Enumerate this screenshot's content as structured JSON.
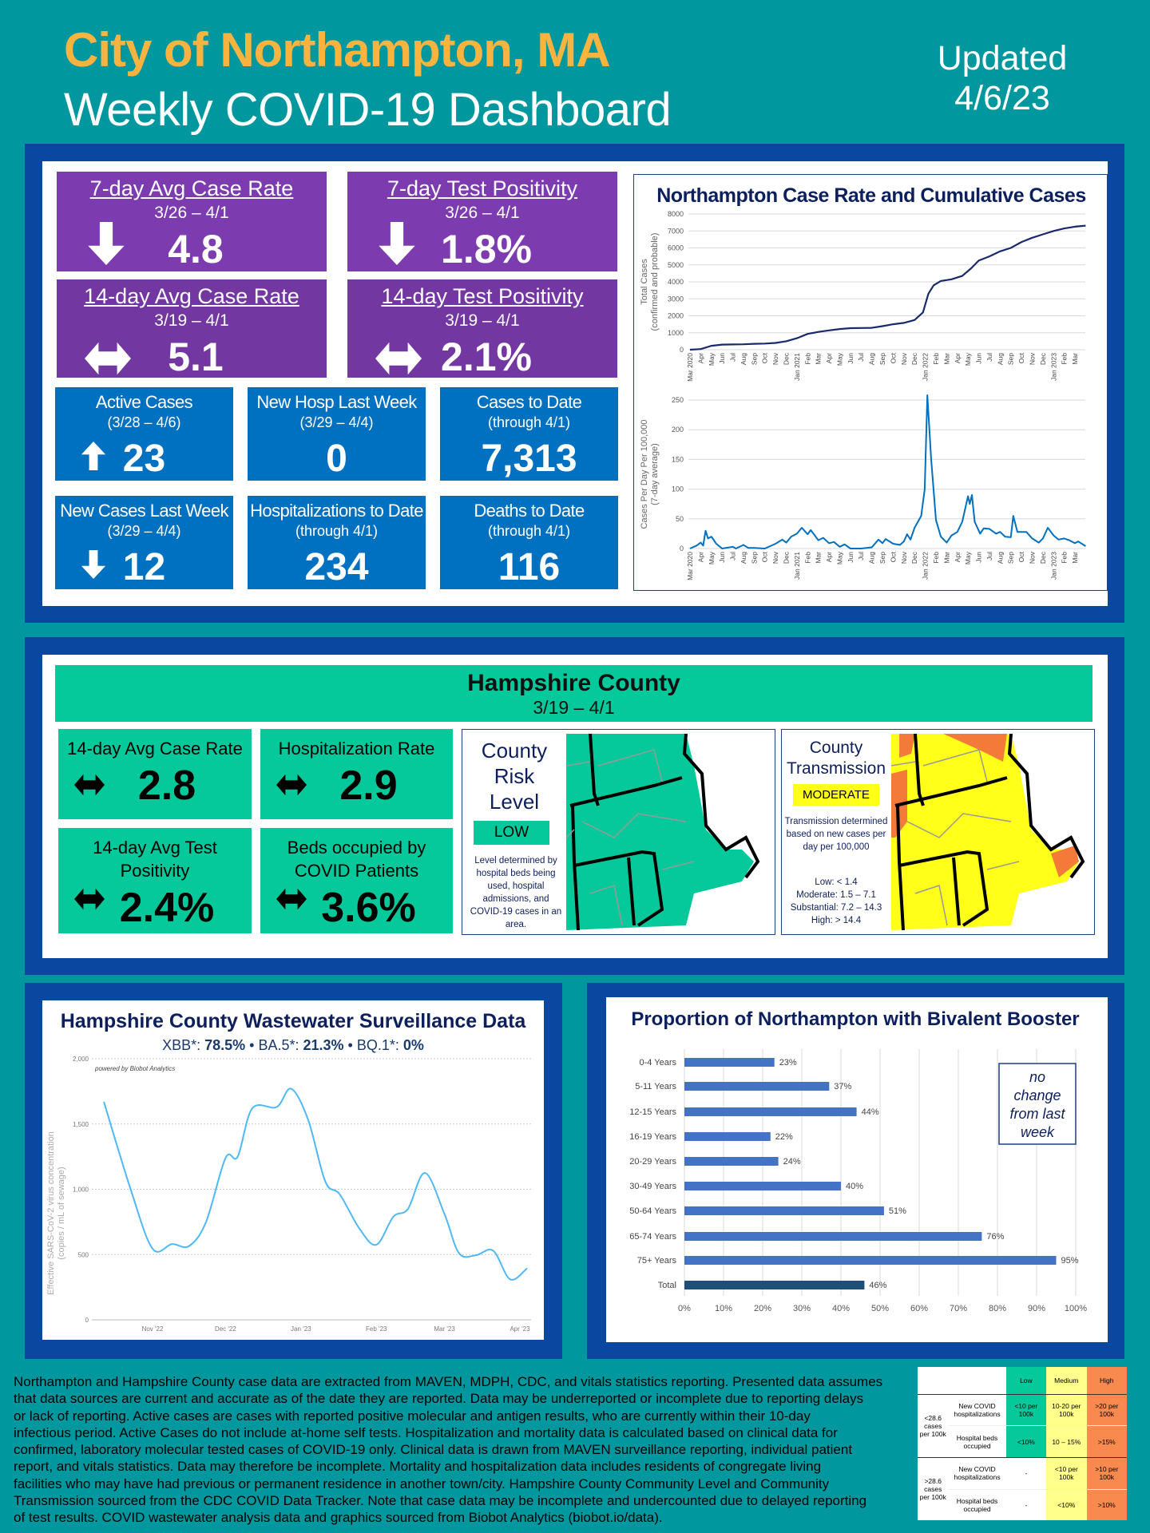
{
  "header": {
    "city": "City of Northampton, MA",
    "subtitle": "Weekly COVID-19 Dashboard",
    "updated_label": "Updated",
    "updated_date": "4/6/23"
  },
  "colors": {
    "background": "#00989e",
    "title_accent": "#fbb340",
    "panel_border": "#0a47a0",
    "purple": "#7d3bb0",
    "blue": "#0070c0",
    "green": "#05c99a",
    "yellow": "#ffff33",
    "orange": "#f47a3a",
    "navy": "#0d1f5c"
  },
  "city_metrics": [
    {
      "title": "7-day Avg Case Rate",
      "dates": "3/26 – 4/1",
      "value": "4.8",
      "trend": "down-arrow-icon"
    },
    {
      "title": "7-day Test Positivity",
      "dates": "3/26 – 4/1",
      "value": "1.8%",
      "trend": "down-arrow-icon"
    },
    {
      "title": "14-day Avg Case Rate",
      "dates": "3/19 – 4/1",
      "value": "5.1",
      "trend": "left-right-arrow-icon"
    },
    {
      "title": "14-day Test Positivity",
      "dates": "3/19 – 4/1",
      "value": "2.1%",
      "trend": "left-right-arrow-icon"
    }
  ],
  "city_counts": [
    {
      "title": "Active Cases",
      "dates": "(3/28 – 4/6)",
      "value": "23",
      "trend": "up-arrow-icon"
    },
    {
      "title": "New Hosp Last Week",
      "dates": "(3/29 – 4/4)",
      "value": "0",
      "trend": ""
    },
    {
      "title": "Cases to Date",
      "dates": "(through 4/1)",
      "value": "7,313",
      "trend": ""
    },
    {
      "title": "New Cases Last Week",
      "dates": "(3/29 – 4/4)",
      "value": "12",
      "trend": "down-arrow-icon"
    },
    {
      "title": "Hospitalizations to Date",
      "dates": "(through 4/1)",
      "value": "234",
      "trend": ""
    },
    {
      "title": "Deaths to Date",
      "dates": "(through 4/1)",
      "value": "116",
      "trend": ""
    }
  ],
  "county": {
    "title": "Hampshire County",
    "dates": "3/19 – 4/1",
    "metrics": [
      {
        "title": "14-day Avg Case Rate",
        "value": "2.8",
        "trend": "left-right-arrow-icon"
      },
      {
        "title": "Hospitalization Rate",
        "value": "2.9",
        "trend": "left-right-arrow-icon"
      },
      {
        "title": "14-day Avg Test Positivity",
        "value": "2.4%",
        "trend": "left-right-arrow-icon"
      },
      {
        "title": "Beds occupied by COVID Patients",
        "value": "3.6%",
        "trend": "left-right-arrow-icon"
      }
    ],
    "risk": {
      "title_lines": [
        "County",
        "Risk",
        "Level"
      ],
      "level": "LOW",
      "note": "Level determined by hospital beds being used, hospital admissions, and COVID-19 cases in an area."
    },
    "transmission": {
      "title_lines": [
        "County",
        "Transmission"
      ],
      "level": "MODERATE",
      "note": "Transmission determined based on new cases per day per 100,000",
      "thresholds": [
        "Low: < 1.4",
        "Moderate: 1.5 – 7.1",
        "Substantial: 7.2 – 14.3",
        "High: > 14.4"
      ]
    }
  },
  "chart_data": [
    {
      "type": "line",
      "title": "Northampton Case Rate and Cumulative Cases",
      "ylabel": [
        "Total Cases",
        "(confirmed and probable)"
      ],
      "ylim": [
        0,
        8000
      ],
      "yticks": [
        0,
        1000,
        2000,
        3000,
        4000,
        5000,
        6000,
        7000,
        8000
      ],
      "grid": true,
      "x_tick_labels": [
        "Mar 2020",
        "Apr",
        "May",
        "Jun",
        "Jul",
        "Aug",
        "Sep",
        "Oct",
        "Nov",
        "Dec",
        "Jan 2021",
        "Feb",
        "Mar",
        "Apr",
        "May",
        "Jun",
        "Jul",
        "Aug",
        "Sep",
        "Oct",
        "Nov",
        "Dec",
        "Jan 2022",
        "Feb",
        "Mar",
        "Apr",
        "May",
        "Jun",
        "Jul",
        "Aug",
        "Sep",
        "Oct",
        "Nov",
        "Dec",
        "Jan 2023",
        "Feb",
        "Mar"
      ],
      "points": [
        [
          "2020-03-01",
          0
        ],
        [
          "2020-04-01",
          40
        ],
        [
          "2020-05-01",
          230
        ],
        [
          "2020-06-01",
          300
        ],
        [
          "2020-07-01",
          310
        ],
        [
          "2020-08-01",
          320
        ],
        [
          "2020-09-01",
          350
        ],
        [
          "2020-10-01",
          360
        ],
        [
          "2020-11-01",
          400
        ],
        [
          "2020-12-01",
          500
        ],
        [
          "2021-01-01",
          680
        ],
        [
          "2021-02-01",
          930
        ],
        [
          "2021-03-01",
          1050
        ],
        [
          "2021-04-01",
          1140
        ],
        [
          "2021-05-01",
          1220
        ],
        [
          "2021-06-01",
          1270
        ],
        [
          "2021-07-01",
          1280
        ],
        [
          "2021-08-01",
          1290
        ],
        [
          "2021-09-01",
          1390
        ],
        [
          "2021-10-01",
          1500
        ],
        [
          "2021-11-01",
          1580
        ],
        [
          "2021-12-01",
          1750
        ],
        [
          "2021-12-25",
          2200
        ],
        [
          "2022-01-10",
          3300
        ],
        [
          "2022-01-25",
          3800
        ],
        [
          "2022-02-15",
          4050
        ],
        [
          "2022-03-15",
          4150
        ],
        [
          "2022-04-15",
          4350
        ],
        [
          "2022-05-10",
          4800
        ],
        [
          "2022-06-01",
          5250
        ],
        [
          "2022-07-01",
          5500
        ],
        [
          "2022-08-01",
          5800
        ],
        [
          "2022-09-01",
          6000
        ],
        [
          "2022-10-01",
          6350
        ],
        [
          "2022-11-01",
          6600
        ],
        [
          "2022-12-01",
          6800
        ],
        [
          "2023-01-01",
          7000
        ],
        [
          "2023-02-01",
          7150
        ],
        [
          "2023-03-01",
          7250
        ],
        [
          "2023-04-01",
          7313
        ]
      ]
    },
    {
      "type": "line",
      "ylabel": [
        "Cases Per Day Per 100,000",
        "(7-day average)"
      ],
      "ylim": [
        0,
        250
      ],
      "yticks": [
        0,
        50,
        100,
        150,
        200,
        250
      ],
      "grid": true,
      "x_tick_labels": [
        "Mar 2020",
        "Apr",
        "May",
        "Jun",
        "Jul",
        "Aug",
        "Sep",
        "Oct",
        "Nov",
        "Dec",
        "Jan 2021",
        "Feb",
        "Mar",
        "Apr",
        "May",
        "Jun",
        "Jul",
        "Aug",
        "Sep",
        "Oct",
        "Nov",
        "Dec",
        "Jan 2022",
        "Feb",
        "Mar",
        "Apr",
        "May",
        "Jun",
        "Jul",
        "Aug",
        "Sep",
        "Oct",
        "Nov",
        "Dec",
        "Jan 2023",
        "Feb",
        "Mar"
      ],
      "points": [
        [
          "2020-03-01",
          0
        ],
        [
          "2020-03-20",
          5
        ],
        [
          "2020-04-01",
          10
        ],
        [
          "2020-04-08",
          5
        ],
        [
          "2020-04-15",
          30
        ],
        [
          "2020-04-22",
          17
        ],
        [
          "2020-05-01",
          20
        ],
        [
          "2020-05-15",
          8
        ],
        [
          "2020-06-01",
          0
        ],
        [
          "2020-07-01",
          3
        ],
        [
          "2020-07-10",
          0
        ],
        [
          "2020-08-01",
          6
        ],
        [
          "2020-08-15",
          1
        ],
        [
          "2020-09-01",
          1
        ],
        [
          "2020-10-01",
          0
        ],
        [
          "2020-11-01",
          8
        ],
        [
          "2020-11-20",
          15
        ],
        [
          "2020-12-01",
          10
        ],
        [
          "2020-12-15",
          20
        ],
        [
          "2021-01-01",
          25
        ],
        [
          "2021-01-15",
          35
        ],
        [
          "2021-02-01",
          24
        ],
        [
          "2021-02-10",
          31
        ],
        [
          "2021-03-01",
          14
        ],
        [
          "2021-03-15",
          18
        ],
        [
          "2021-04-01",
          9
        ],
        [
          "2021-04-15",
          11
        ],
        [
          "2021-05-01",
          3
        ],
        [
          "2021-05-15",
          7
        ],
        [
          "2021-06-01",
          0
        ],
        [
          "2021-07-01",
          0
        ],
        [
          "2021-08-01",
          2
        ],
        [
          "2021-08-20",
          15
        ],
        [
          "2021-09-01",
          9
        ],
        [
          "2021-09-10",
          16
        ],
        [
          "2021-10-01",
          8
        ],
        [
          "2021-10-20",
          6
        ],
        [
          "2021-11-01",
          12
        ],
        [
          "2021-11-10",
          24
        ],
        [
          "2021-11-20",
          15
        ],
        [
          "2021-12-01",
          35
        ],
        [
          "2021-12-20",
          55
        ],
        [
          "2021-12-30",
          100
        ],
        [
          "2022-01-07",
          258
        ],
        [
          "2022-01-18",
          150
        ],
        [
          "2022-02-01",
          48
        ],
        [
          "2022-02-15",
          20
        ],
        [
          "2022-03-01",
          10
        ],
        [
          "2022-03-15",
          22
        ],
        [
          "2022-04-01",
          28
        ],
        [
          "2022-04-15",
          45
        ],
        [
          "2022-05-01",
          88
        ],
        [
          "2022-05-06",
          75
        ],
        [
          "2022-05-12",
          90
        ],
        [
          "2022-05-20",
          45
        ],
        [
          "2022-06-05",
          25
        ],
        [
          "2022-06-15",
          34
        ],
        [
          "2022-07-01",
          33
        ],
        [
          "2022-07-20",
          25
        ],
        [
          "2022-08-01",
          28
        ],
        [
          "2022-08-15",
          20
        ],
        [
          "2022-09-01",
          19
        ],
        [
          "2022-09-08",
          55
        ],
        [
          "2022-09-20",
          28
        ],
        [
          "2022-10-15",
          28
        ],
        [
          "2022-11-01",
          17
        ],
        [
          "2022-11-20",
          10
        ],
        [
          "2022-12-01",
          17
        ],
        [
          "2022-12-15",
          35
        ],
        [
          "2023-01-01",
          22
        ],
        [
          "2023-01-15",
          15
        ],
        [
          "2023-02-01",
          17
        ],
        [
          "2023-02-15",
          14
        ],
        [
          "2023-03-01",
          9
        ],
        [
          "2023-03-10",
          12
        ],
        [
          "2023-04-01",
          4
        ]
      ]
    },
    {
      "type": "line",
      "title": "Hampshire County Wastewater Surveillance Data",
      "subtitle_parts": [
        {
          "label": "XBB*: ",
          "value": "78.5%"
        },
        {
          "label": " • BA.5*: ",
          "value": "21.3%"
        },
        {
          "label": " • BQ.1*: ",
          "value": "0%"
        }
      ],
      "credit": "powered by Biobot Analytics",
      "ylabel": [
        "Effective SARS-CoV-2 virus concentration",
        "(copies / mL of sewage)"
      ],
      "ylim": [
        0,
        2000
      ],
      "yticks": [
        "0",
        "500",
        "1,000",
        "1,500",
        "2,000"
      ],
      "x_ticks": [
        [
          "2022-11-01",
          "Nov '22"
        ],
        [
          "2022-12-01",
          "Dec '22"
        ],
        [
          "2023-01-01",
          "Jan '23"
        ],
        [
          "2023-02-01",
          "Feb '23"
        ],
        [
          "2023-03-01",
          "Mar '23"
        ],
        [
          "2023-04-01",
          "Apr '23"
        ]
      ],
      "grid": true,
      "points": [
        [
          "2022-10-12",
          1670
        ],
        [
          "2022-10-23",
          1000
        ],
        [
          "2022-11-01",
          545
        ],
        [
          "2022-11-09",
          580
        ],
        [
          "2022-11-16",
          565
        ],
        [
          "2022-11-23",
          750
        ],
        [
          "2022-12-01",
          1240
        ],
        [
          "2022-12-06",
          1250
        ],
        [
          "2022-12-12",
          1620
        ],
        [
          "2022-12-22",
          1630
        ],
        [
          "2022-12-28",
          1770
        ],
        [
          "2023-01-04",
          1530
        ],
        [
          "2023-01-11",
          1060
        ],
        [
          "2023-01-17",
          960
        ],
        [
          "2023-01-25",
          700
        ],
        [
          "2023-02-01",
          575
        ],
        [
          "2023-02-08",
          790
        ],
        [
          "2023-02-14",
          850
        ],
        [
          "2023-02-21",
          1125
        ],
        [
          "2023-03-01",
          810
        ],
        [
          "2023-03-07",
          510
        ],
        [
          "2023-03-14",
          495
        ],
        [
          "2023-03-21",
          530
        ],
        [
          "2023-03-28",
          310
        ],
        [
          "2023-04-04",
          395
        ]
      ]
    },
    {
      "type": "bar",
      "orientation": "horizontal",
      "title": "Proportion of Northampton with Bivalent Booster",
      "categories": [
        "0-4 Years",
        "5-11 Years",
        "12-15 Years",
        "16-19 Years",
        "20-29 Years",
        "30-49 Years",
        "50-64 Years",
        "65-74 Years",
        "75+ Years",
        "Total"
      ],
      "values": [
        23,
        37,
        44,
        22,
        24,
        40,
        51,
        76,
        95,
        46
      ],
      "data_labels": [
        "23%",
        "37%",
        "44%",
        "22%",
        "24%",
        "40%",
        "51%",
        "76%",
        "95%",
        "46%"
      ],
      "xlim": [
        0,
        100
      ],
      "x_tick_labels": [
        "0%",
        "10%",
        "20%",
        "30%",
        "40%",
        "50%",
        "60%",
        "70%",
        "80%",
        "90%",
        "100%"
      ],
      "grid": true,
      "bar_color": "#4472c4",
      "total_color": "#1f4e79",
      "annotation": [
        "no",
        "change",
        "from last",
        "week"
      ]
    }
  ],
  "footer": {
    "lines": [
      "Northampton and Hampshire County case data are extracted from MAVEN, MDPH, CDC, and vitals statistics reporting. Presented data assumes",
      "that data sources are current and accurate as of the date they are reported. Data may be underreported or incomplete due to reporting delays",
      "or lack of reporting. Active cases are cases with reported positive molecular and antigen results, who are currently within their 10-day",
      "infectious period. Active Cases do not include at-home self tests. Hospitalization and mortality data is calculated based on clinical data for",
      "confirmed, laboratory molecular tested cases of COVID-19 only. Clinical data is drawn from MAVEN surveillance reporting, individual patient",
      "report, and vitals statistics. Data may therefore be incomplete. Mortality and hospitalization data includes residents of congregate living",
      "facilities who may have had previous or permanent residence in another town/city. Hampshire County Community Level and Community",
      "Transmission sourced from the CDC COVID Data Tracker. Note that case data may be incomplete and undercounted due to delayed reporting",
      "of test results. COVID wastewater analysis data and graphics sourced from Biobot Analytics (biobot.io/data)."
    ]
  },
  "legend_table": {
    "headers": [
      "Low",
      "Medium",
      "High"
    ],
    "groups": [
      {
        "label": "<28.6 cases per 100k",
        "rows": [
          {
            "metric": "New COVID hospitalizations",
            "cells": [
              "<10 per 100k",
              "10-20 per 100k",
              ">20 per 100k"
            ]
          },
          {
            "metric": "Hospital beds occupied",
            "cells": [
              "<10%",
              "10 – 15%",
              ">15%"
            ]
          }
        ]
      },
      {
        "label": ">28.6 cases per 100k",
        "rows": [
          {
            "metric": "New COVID hospitalizations",
            "cells": [
              "-",
              "<10 per 100k",
              ">10 per 100k"
            ]
          },
          {
            "metric": "Hospital beds occupied",
            "cells": [
              "-",
              "<10%",
              ">10%"
            ]
          }
        ]
      }
    ]
  }
}
